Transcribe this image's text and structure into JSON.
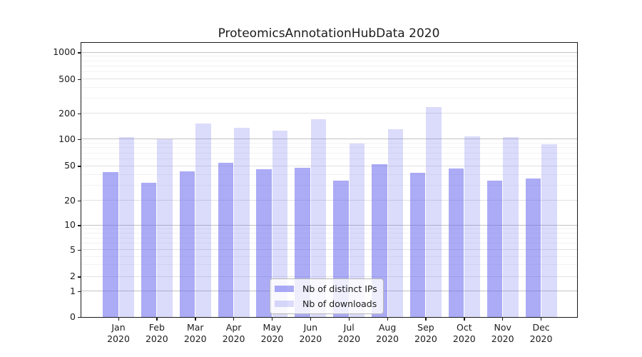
{
  "chart_data": {
    "type": "bar",
    "title": "ProteomicsAnnotationHubData 2020",
    "categories": [
      "Jan",
      "Feb",
      "Mar",
      "Apr",
      "May",
      "Jun",
      "Jul",
      "Aug",
      "Sep",
      "Oct",
      "Nov",
      "Dec"
    ],
    "category_year_line": "2020",
    "series": [
      {
        "name": "Nb of distinct IPs",
        "color": "rgba(102,102,238,0.55)",
        "values": [
          43,
          32,
          44,
          55,
          46,
          48,
          34,
          53,
          42,
          47,
          34,
          36
        ]
      },
      {
        "name": "Nb of downloads",
        "color": "rgba(102,102,238,0.235)",
        "values": [
          106,
          100,
          155,
          136,
          127,
          172,
          90,
          131,
          237,
          109,
          106,
          88
        ]
      }
    ],
    "y_ticks": [
      1000,
      500,
      200,
      100,
      50,
      20,
      10,
      5,
      2,
      1,
      0
    ],
    "y_scale": "symlog",
    "ylim": [
      0,
      1300
    ],
    "grid": "horizontal",
    "legend_position": "lower-center-inside"
  },
  "colors": {
    "bar_dark_on_white": "#abaaf7",
    "bar_light_on_white": "#dcdcfa",
    "grid_decade": "#c3c3c3",
    "grid_labeled": "#e2e2e2",
    "grid_minor": "#f2f2f2",
    "axis_frame": "#1a1a1a"
  }
}
